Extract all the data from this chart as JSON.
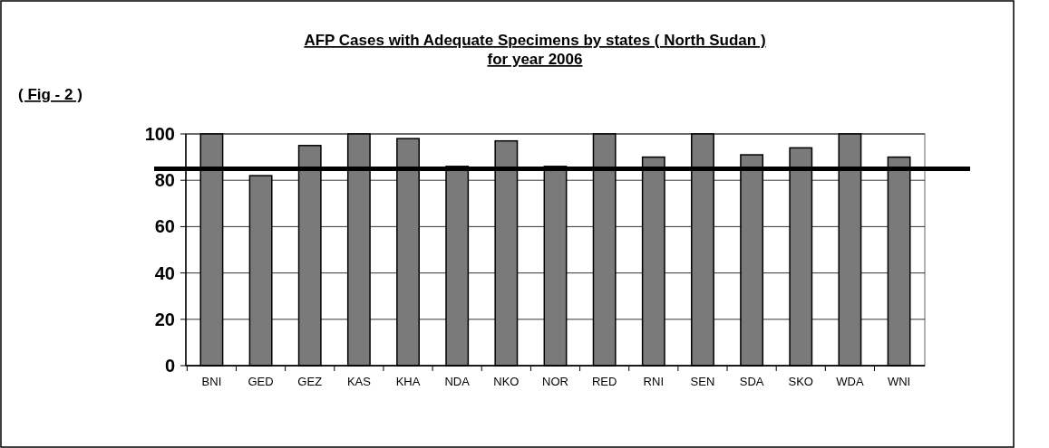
{
  "chart_data": {
    "type": "bar",
    "title": "AFP Cases with Adequate Specimens by states ( North Sudan )",
    "subtitle": "for year 2006",
    "annotations": [
      "( Fig - 2 )"
    ],
    "categories": [
      "BNI",
      "GED",
      "GEZ",
      "KAS",
      "KHA",
      "NDA",
      "NKO",
      "NOR",
      "RED",
      "RNI",
      "SEN",
      "SDA",
      "SKO",
      "WDA",
      "WNI"
    ],
    "values": [
      100,
      82,
      95,
      100,
      98,
      86,
      97,
      86,
      100,
      90,
      100,
      91,
      94,
      100,
      90
    ],
    "color": "#7a7a7a",
    "ylim": [
      0,
      100
    ],
    "yticks": [
      0,
      20,
      40,
      60,
      80,
      100
    ],
    "grid": "y",
    "ref_lines": [
      {
        "axis": "y",
        "value": 85,
        "color": "#000000"
      }
    ]
  }
}
